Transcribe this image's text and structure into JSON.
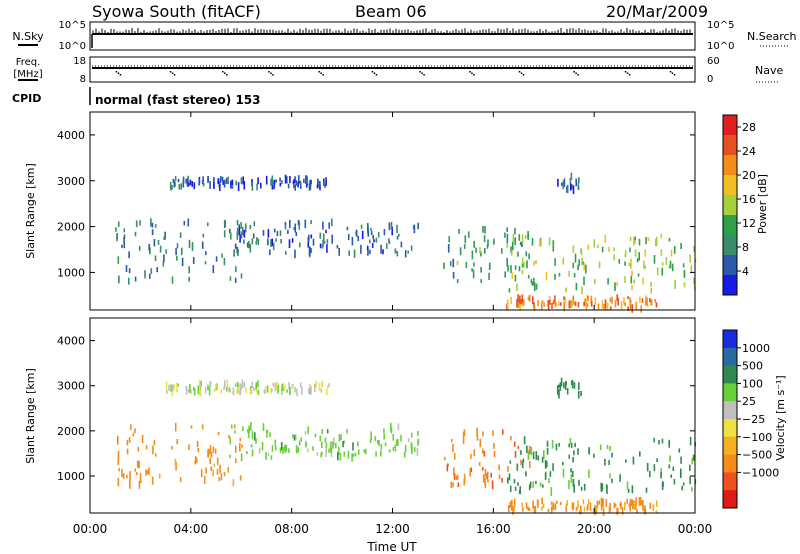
{
  "header": {
    "title": "Syowa South (fitACF)",
    "beam": "Beam 06",
    "date": "20/Mar/2009"
  },
  "noise_panel": {
    "left_label": "N.Sky",
    "left_ticks": [
      "10^5",
      "10^0"
    ],
    "right_label": "N.Search",
    "right_ticks": [
      "10^5",
      "10^0"
    ]
  },
  "freq_panel": {
    "left_label_1": "Freq.",
    "left_label_2": "[MHz]",
    "left_ticks": [
      "18",
      "8"
    ],
    "right_label": "Nave",
    "right_ticks": [
      "60",
      "0"
    ]
  },
  "cpid": {
    "label": "CPID",
    "text": "normal (fast stereo) 153"
  },
  "colors": {
    "power_scale": [
      "#1a1ae6",
      "#2b5aa8",
      "#3a8c6c",
      "#2ea04a",
      "#a6d13a",
      "#f0c020",
      "#f58c1a",
      "#e85020",
      "#e02020"
    ],
    "velocity_scale": [
      "#e01818",
      "#ee5020",
      "#f58c1a",
      "#f5b020",
      "#f0e040",
      "#bfbfbf",
      "#6ad03a",
      "#2f8a50",
      "#2b6aa0",
      "#1a2ae0"
    ]
  },
  "chart_data": [
    {
      "type": "heatmap",
      "panel": "power",
      "ylabel": "Slant Range [km]",
      "yticks": [
        "1000",
        "2000",
        "3000",
        "4000"
      ],
      "ylim": [
        180,
        4500
      ],
      "xlim": [
        "00:00",
        "24:00"
      ],
      "colorbar": {
        "label": "Power [dB]",
        "ticks": [
          "4",
          "8",
          "12",
          "16",
          "20",
          "24",
          "28"
        ],
        "range": [
          0,
          30
        ]
      },
      "echo_regions": [
        {
          "t": [
            1.0,
            6.0
          ],
          "r": [
            800,
            2100
          ],
          "value": 8
        },
        {
          "t": [
            3.0,
            9.5
          ],
          "r": [
            2850,
            3050
          ],
          "value": 5
        },
        {
          "t": [
            5.5,
            13.0
          ],
          "r": [
            1400,
            2100
          ],
          "value": 6
        },
        {
          "t": [
            14.0,
            17.5
          ],
          "r": [
            800,
            2000
          ],
          "value": 10
        },
        {
          "t": [
            16.5,
            24.0
          ],
          "r": [
            600,
            1800
          ],
          "value": 14
        },
        {
          "t": [
            18.5,
            19.5
          ],
          "r": [
            2800,
            3100
          ],
          "value": 6
        },
        {
          "t": [
            16.5,
            22.5
          ],
          "r": [
            200,
            450
          ],
          "value": 22
        }
      ]
    },
    {
      "type": "heatmap",
      "panel": "velocity",
      "ylabel": "Slant Range [km]",
      "yticks": [
        "1000",
        "2000",
        "3000",
        "4000"
      ],
      "ylim": [
        180,
        4500
      ],
      "xlabel": "Time UT",
      "xticks": [
        "00:00",
        "04:00",
        "08:00",
        "12:00",
        "16:00",
        "20:00",
        "00:00"
      ],
      "xlim": [
        "00:00",
        "24:00"
      ],
      "colorbar": {
        "label": "Velocity [m s⁻¹]",
        "ticks": [
          "1000",
          "500",
          "100",
          "25",
          "−25",
          "−100",
          "−500",
          "−1000"
        ],
        "range": [
          -1000,
          1000
        ]
      },
      "echo_regions": [
        {
          "t": [
            1.0,
            6.0
          ],
          "r": [
            800,
            2100
          ],
          "value": -200
        },
        {
          "t": [
            3.0,
            9.5
          ],
          "r": [
            2850,
            3050
          ],
          "value": 10
        },
        {
          "t": [
            5.5,
            13.0
          ],
          "r": [
            1400,
            2100
          ],
          "value": 60
        },
        {
          "t": [
            14.0,
            17.5
          ],
          "r": [
            800,
            2000
          ],
          "value": -400
        },
        {
          "t": [
            16.5,
            24.0
          ],
          "r": [
            600,
            1800
          ],
          "value": 150
        },
        {
          "t": [
            18.5,
            19.5
          ],
          "r": [
            2800,
            3100
          ],
          "value": 150
        },
        {
          "t": [
            16.5,
            22.5
          ],
          "r": [
            200,
            450
          ],
          "value": -150
        }
      ]
    }
  ]
}
